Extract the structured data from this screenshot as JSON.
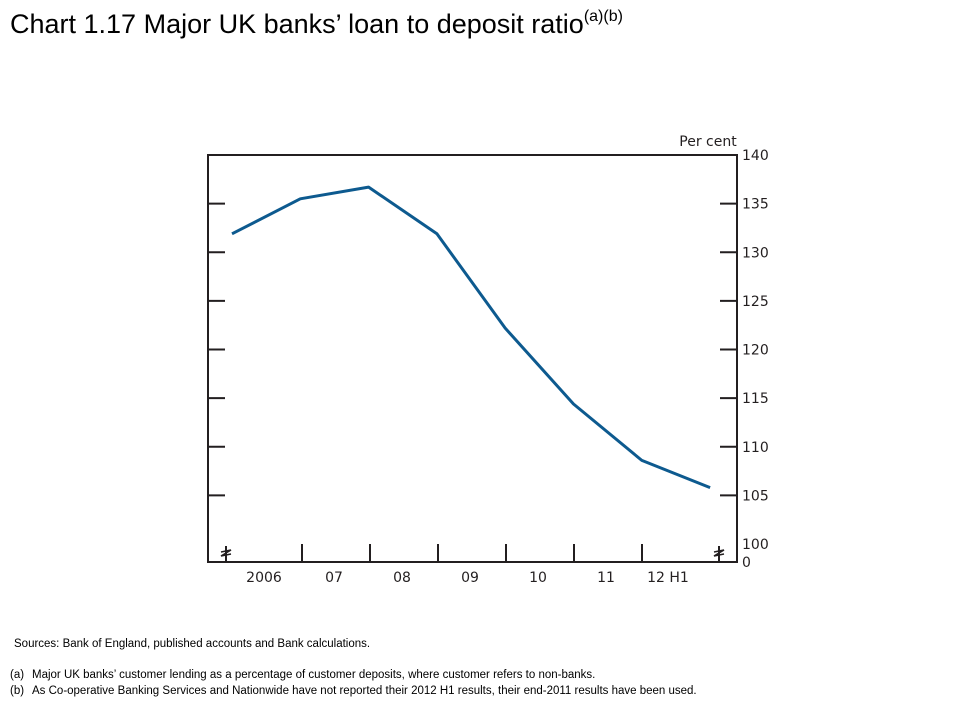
{
  "header": {
    "title": "Chart 1.17  Major UK banks’ loan to deposit ratio",
    "title_superscript": "(a)(b)"
  },
  "chart_data": {
    "type": "line",
    "y_unit_label": "Per cent",
    "x_tick_labels": [
      "2006",
      "07",
      "08",
      "09",
      "10",
      "11",
      "12 H1"
    ],
    "y_tick_labels": [
      "140",
      "135",
      "130",
      "125",
      "120",
      "115",
      "110",
      "105",
      "100",
      "0"
    ],
    "ylim": [
      100,
      140
    ],
    "y_axis_break": true,
    "series": [
      {
        "values": [
          131.9,
          135.5,
          136.7,
          131.9,
          122.2,
          114.4,
          108.6,
          105.8
        ]
      }
    ],
    "x_positions": [
      0,
      1,
      2,
      3,
      4,
      5,
      6,
      7
    ],
    "line_color": "#0d5a8f",
    "grid": false
  },
  "notes": {
    "sources": "Sources:  Bank of England, published accounts and Bank calculations.",
    "footnotes": [
      {
        "mark": "(a)",
        "text": "Major UK banks’ customer lending as a percentage of customer deposits, where customer refers to non-banks."
      },
      {
        "mark": "(b)",
        "text": "As Co-operative Banking Services and Nationwide have not reported their 2012 H1 results, their end-2011 results have been used."
      }
    ]
  }
}
